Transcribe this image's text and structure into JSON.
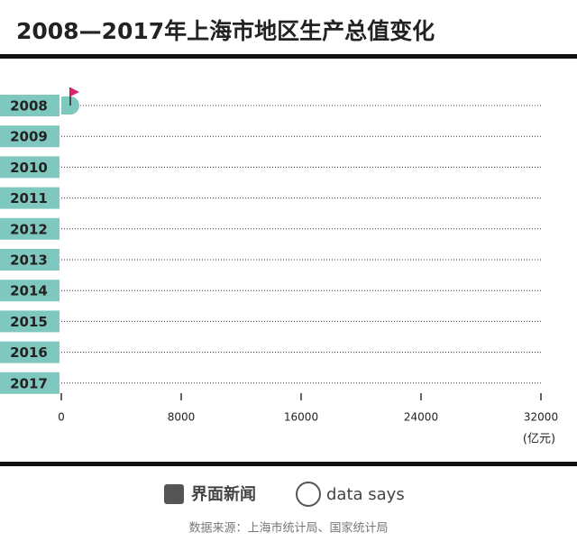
{
  "chart_data": {
    "type": "bar",
    "orientation": "horizontal",
    "title": "2008—2017年上海市地区生产总值变化",
    "categories": [
      "2008",
      "2009",
      "2010",
      "2011",
      "2012",
      "2013",
      "2014",
      "2015",
      "2016",
      "2017"
    ],
    "values": [
      600,
      null,
      null,
      null,
      null,
      null,
      null,
      null,
      null,
      null
    ],
    "color": "#7fc8bf",
    "xlim": [
      0,
      32000
    ],
    "xticks": [
      0,
      8000,
      16000,
      24000,
      32000
    ],
    "unit": "(亿元)",
    "grid": true,
    "logo": "界面新闻",
    "brand": "data says",
    "source": "数据来源：上海市统计局、国家统计局"
  }
}
